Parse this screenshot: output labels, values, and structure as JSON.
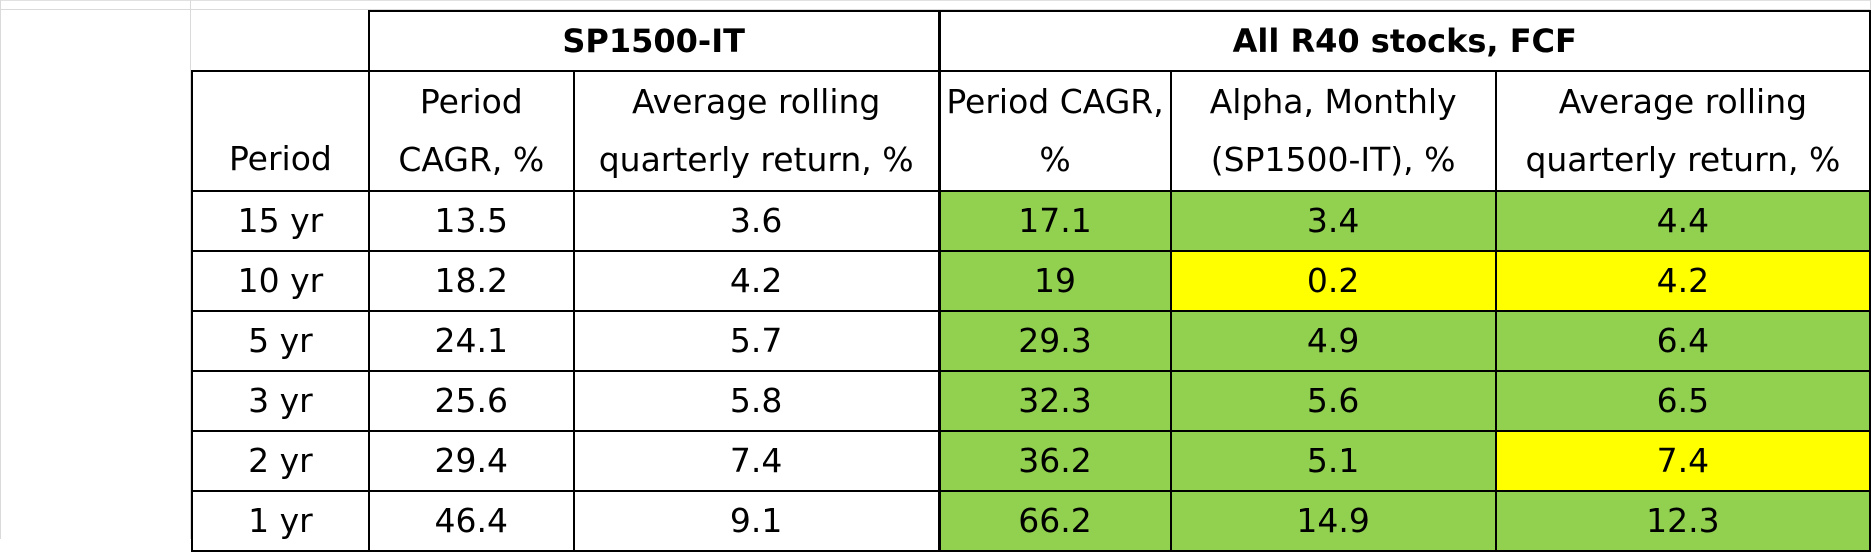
{
  "table": {
    "group_headers": [
      "SP1500-IT",
      "All R40 stocks, FCF"
    ],
    "column_headers": [
      "Period",
      "Period CAGR, %",
      "Average rolling quarterly return, %",
      "Period CAGR, %",
      "Alpha, Monthly (SP1500-IT), %",
      "Average rolling quarterly return, %"
    ],
    "rows": [
      {
        "period": "15 yr",
        "sp_cagr": "13.5",
        "sp_rolling": "3.6",
        "r40_cagr": "17.1",
        "r40_alpha": "3.4",
        "r40_rolling": "4.4",
        "alpha_color": "green",
        "rolling_color": "green"
      },
      {
        "period": "10 yr",
        "sp_cagr": "18.2",
        "sp_rolling": "4.2",
        "r40_cagr": "19",
        "r40_alpha": "0.2",
        "r40_rolling": "4.2",
        "alpha_color": "yellow",
        "rolling_color": "yellow"
      },
      {
        "period": "5 yr",
        "sp_cagr": "24.1",
        "sp_rolling": "5.7",
        "r40_cagr": "29.3",
        "r40_alpha": "4.9",
        "r40_rolling": "6.4",
        "alpha_color": "green",
        "rolling_color": "green"
      },
      {
        "period": "3 yr",
        "sp_cagr": "25.6",
        "sp_rolling": "5.8",
        "r40_cagr": "32.3",
        "r40_alpha": "5.6",
        "r40_rolling": "6.5",
        "alpha_color": "green",
        "rolling_color": "green"
      },
      {
        "period": "2 yr",
        "sp_cagr": "29.4",
        "sp_rolling": "7.4",
        "r40_cagr": "36.2",
        "r40_alpha": "5.1",
        "r40_rolling": "7.4",
        "alpha_color": "green",
        "rolling_color": "yellow"
      },
      {
        "period": "1 yr",
        "sp_cagr": "46.4",
        "sp_rolling": "9.1",
        "r40_cagr": "66.2",
        "r40_alpha": "14.9",
        "r40_rolling": "12.3",
        "alpha_color": "green",
        "rolling_color": "green"
      }
    ]
  },
  "colors": {
    "green": "#92d050",
    "yellow": "#ffff00",
    "gridline": "#dadada"
  }
}
